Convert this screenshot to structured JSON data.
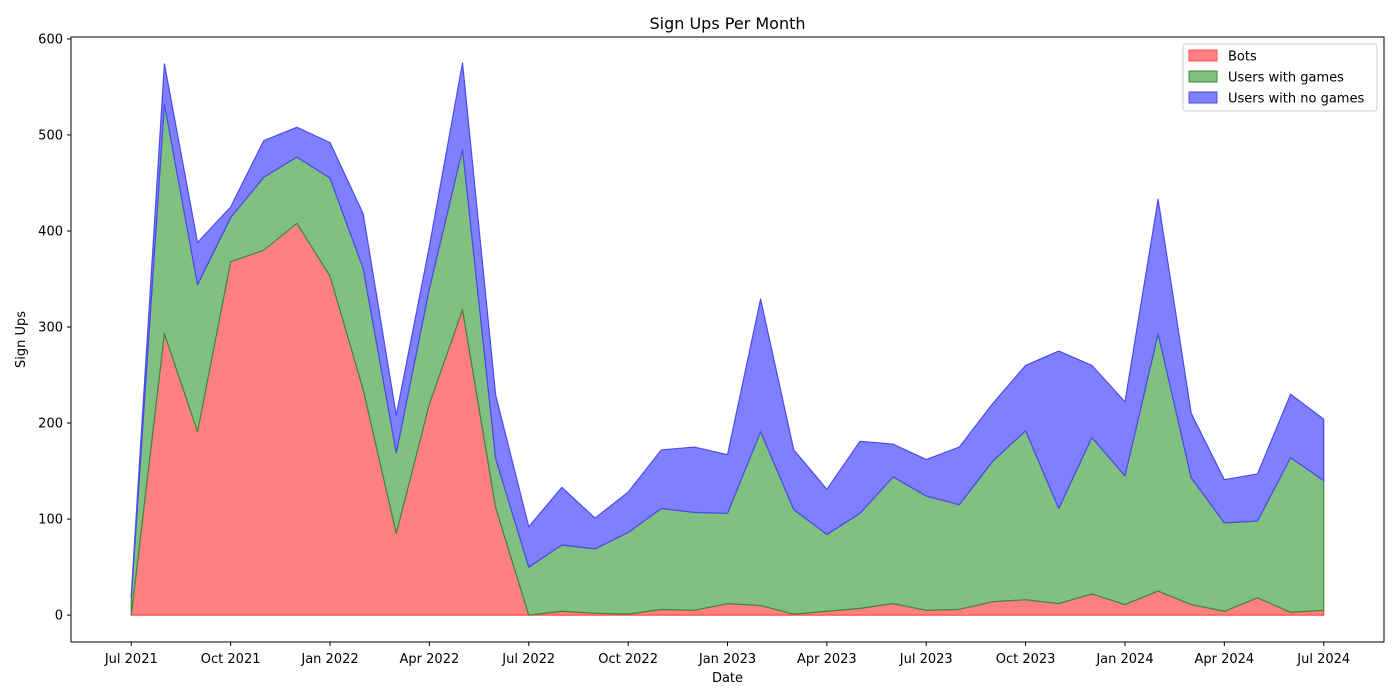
{
  "chart_data": {
    "type": "area",
    "stacked": true,
    "title": "Sign Ups Per Month",
    "xlabel": "Date",
    "ylabel": "Sign Ups",
    "ylim": [
      -28,
      602
    ],
    "yticks": [
      0,
      100,
      200,
      300,
      400,
      500,
      600
    ],
    "x_dates": [
      "2021-07",
      "2021-08",
      "2021-09",
      "2021-10",
      "2021-11",
      "2021-12",
      "2022-01",
      "2022-02",
      "2022-03",
      "2022-04",
      "2022-05",
      "2022-06",
      "2022-07",
      "2022-08",
      "2022-09",
      "2022-10",
      "2022-11",
      "2022-12",
      "2023-01",
      "2023-02",
      "2023-03",
      "2023-04",
      "2023-05",
      "2023-06",
      "2023-07",
      "2023-08",
      "2023-09",
      "2023-10",
      "2023-11",
      "2023-12",
      "2024-01",
      "2024-02",
      "2024-03",
      "2024-04",
      "2024-05",
      "2024-06",
      "2024-07"
    ],
    "xticks": [
      {
        "date": "2021-07",
        "label": "Jul 2021"
      },
      {
        "date": "2021-10",
        "label": "Oct 2021"
      },
      {
        "date": "2022-01",
        "label": "Jan 2022"
      },
      {
        "date": "2022-04",
        "label": "Apr 2022"
      },
      {
        "date": "2022-07",
        "label": "Jul 2022"
      },
      {
        "date": "2022-10",
        "label": "Oct 2022"
      },
      {
        "date": "2023-01",
        "label": "Jan 2023"
      },
      {
        "date": "2023-04",
        "label": "Apr 2023"
      },
      {
        "date": "2023-07",
        "label": "Jul 2023"
      },
      {
        "date": "2023-10",
        "label": "Oct 2023"
      },
      {
        "date": "2024-01",
        "label": "Jan 2024"
      },
      {
        "date": "2024-04",
        "label": "Apr 2024"
      },
      {
        "date": "2024-07",
        "label": "Jul 2024"
      }
    ],
    "series": [
      {
        "name": "Bots",
        "color": "#ff8080",
        "edge_color": "#ff4d4d",
        "values": [
          0,
          293,
          191,
          368,
          380,
          408,
          353,
          235,
          85,
          220,
          318,
          112,
          0,
          4,
          2,
          1,
          6,
          5,
          12,
          10,
          1,
          4,
          7,
          12,
          5,
          6,
          14,
          16,
          12,
          22,
          11,
          25,
          11,
          4,
          18,
          3,
          5
        ]
      },
      {
        "name": "Users with games",
        "color": "#80c080",
        "edge_color": "#3a8a3a",
        "values": [
          18,
          239,
          153,
          46,
          76,
          69,
          102,
          126,
          84,
          120,
          167,
          51,
          50,
          69,
          67,
          85,
          105,
          102,
          94,
          181,
          109,
          80,
          99,
          132,
          119,
          109,
          146,
          176,
          99,
          163,
          134,
          268,
          132,
          92,
          80,
          161,
          135
        ]
      },
      {
        "name": "Users with no games",
        "color": "#8080ff",
        "edge_color": "#4a4af0",
        "values": [
          3,
          42,
          44,
          11,
          38,
          31,
          37,
          57,
          39,
          44,
          90,
          66,
          42,
          60,
          32,
          42,
          61,
          68,
          61,
          138,
          62,
          47,
          75,
          34,
          38,
          60,
          60,
          68,
          164,
          75,
          77,
          140,
          67,
          45,
          49,
          66,
          64
        ]
      }
    ],
    "legend": {
      "position": "top-right"
    },
    "grid": false
  }
}
